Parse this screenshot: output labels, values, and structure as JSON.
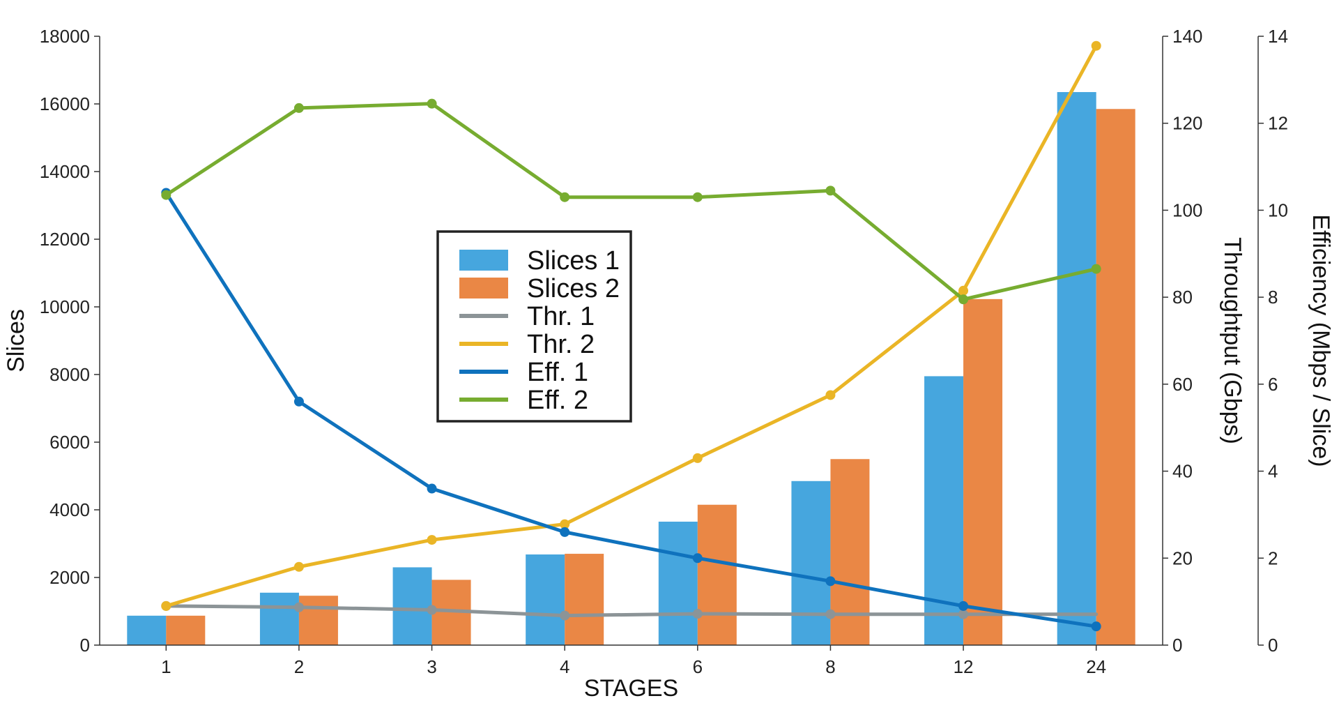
{
  "chart_data": {
    "type": "bar",
    "categories": [
      "1",
      "2",
      "3",
      "4",
      "6",
      "8",
      "12",
      "24"
    ],
    "xlabel": "STAGES",
    "axes": {
      "left": {
        "label": "Slices",
        "ylim": [
          0,
          18000
        ],
        "ticks": [
          0,
          2000,
          4000,
          6000,
          8000,
          10000,
          12000,
          14000,
          16000,
          18000
        ]
      },
      "right1": {
        "label": "Throughtput (Gbps)",
        "ylim": [
          0,
          140
        ],
        "ticks": [
          0,
          20,
          40,
          60,
          80,
          100,
          120,
          140
        ]
      },
      "right2": {
        "label": "Efficiency (Mbps / Slice)",
        "ylim": [
          0,
          14
        ],
        "ticks": [
          0,
          2,
          4,
          6,
          8,
          10,
          12,
          14
        ]
      }
    },
    "bar_series": [
      {
        "name": "Slices 1",
        "axis": "left",
        "color": "#46a6de",
        "values": [
          870,
          1550,
          2300,
          2680,
          3650,
          4850,
          7950,
          16350
        ]
      },
      {
        "name": "Slices 2",
        "axis": "left",
        "color": "#ea8745",
        "values": [
          870,
          1460,
          1930,
          2700,
          4150,
          5500,
          10230,
          15850
        ]
      }
    ],
    "line_series": [
      {
        "name": "Thr. 1",
        "axis": "right1",
        "color": "#8c9497",
        "values": [
          9,
          8.7,
          8.1,
          6.8,
          7.2,
          7.1,
          7.1,
          7.1
        ],
        "markers": [
          true,
          true,
          true,
          true,
          true,
          true,
          true,
          false
        ]
      },
      {
        "name": "Thr. 2",
        "axis": "right1",
        "color": "#eab526",
        "values": [
          9,
          18,
          24.2,
          27.8,
          43,
          57.5,
          81.5,
          137.8
        ],
        "markers": [
          true,
          true,
          true,
          true,
          true,
          true,
          true,
          true
        ]
      },
      {
        "name": "Eff. 1",
        "axis": "right2",
        "color": "#0f72bd",
        "values": [
          10.4,
          5.6,
          3.6,
          2.6,
          2.0,
          1.47,
          0.9,
          0.43
        ],
        "markers": [
          true,
          true,
          true,
          true,
          true,
          true,
          true,
          true
        ]
      },
      {
        "name": "Eff. 2",
        "axis": "right2",
        "color": "#77ac30",
        "values": [
          10.35,
          12.35,
          12.45,
          10.3,
          10.3,
          10.45,
          7.95,
          8.65
        ],
        "markers": [
          true,
          true,
          true,
          true,
          true,
          true,
          true,
          true
        ]
      }
    ],
    "legend": {
      "placement": "center-left",
      "entries": [
        "Slices 1",
        "Slices 2",
        "Thr. 1",
        "Thr. 2",
        "Eff. 1",
        "Eff. 2"
      ]
    },
    "grid": false
  }
}
